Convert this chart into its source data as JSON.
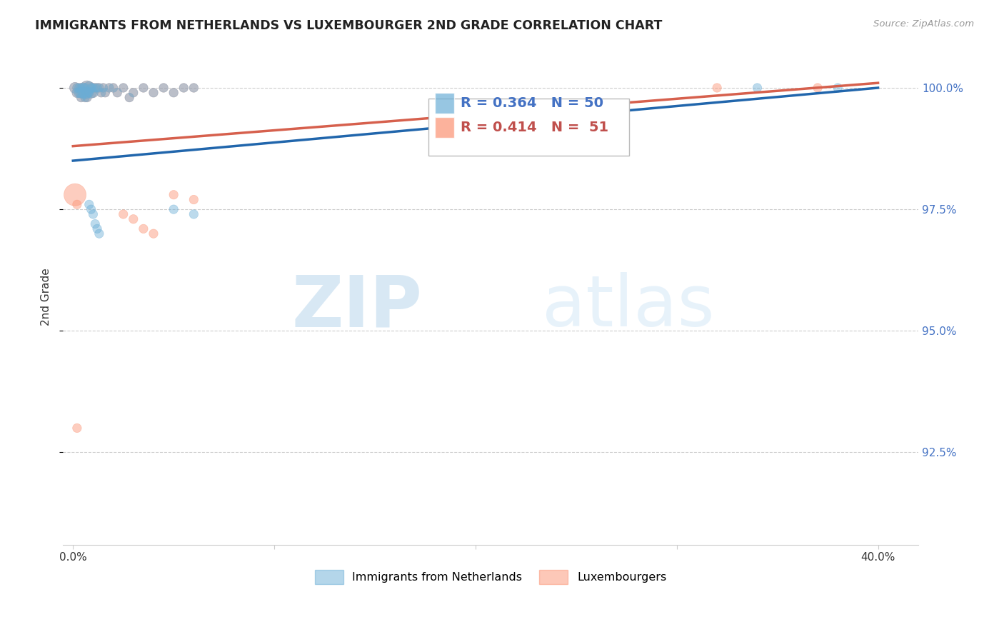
{
  "title": "IMMIGRANTS FROM NETHERLANDS VS LUXEMBOURGER 2ND GRADE CORRELATION CHART",
  "source": "Source: ZipAtlas.com",
  "ylabel": "2nd Grade",
  "yticks": [
    "100.0%",
    "97.5%",
    "95.0%",
    "92.5%"
  ],
  "ytick_vals": [
    1.0,
    0.975,
    0.95,
    0.925
  ],
  "ylim": [
    0.906,
    1.008
  ],
  "xlim": [
    -0.005,
    0.42
  ],
  "blue_R": 0.364,
  "blue_N": 50,
  "pink_R": 0.414,
  "pink_N": 51,
  "blue_color": "#6baed6",
  "pink_color": "#fc9272",
  "blue_line_color": "#2166ac",
  "pink_line_color": "#d6604d",
  "watermark_zip": "ZIP",
  "watermark_atlas": "atlas",
  "legend_label_blue": "Immigrants from Netherlands",
  "legend_label_pink": "Luxembourgers",
  "blue_x": [
    0.001,
    0.002,
    0.002,
    0.003,
    0.003,
    0.004,
    0.004,
    0.004,
    0.005,
    0.005,
    0.006,
    0.006,
    0.006,
    0.007,
    0.007,
    0.007,
    0.008,
    0.008,
    0.009,
    0.009,
    0.01,
    0.01,
    0.011,
    0.012,
    0.013,
    0.014,
    0.015,
    0.016,
    0.018,
    0.02,
    0.022,
    0.025,
    0.028,
    0.03,
    0.035,
    0.04,
    0.045,
    0.05,
    0.055,
    0.06,
    0.008,
    0.009,
    0.01,
    0.011,
    0.012,
    0.013,
    0.05,
    0.06,
    0.34,
    0.38
  ],
  "blue_y": [
    1.0,
    1.0,
    0.999,
    1.0,
    0.999,
    1.0,
    0.999,
    0.998,
    1.0,
    0.999,
    1.0,
    0.999,
    0.998,
    1.0,
    0.999,
    0.998,
    1.0,
    0.999,
    1.0,
    0.999,
    1.0,
    0.999,
    1.0,
    1.0,
    1.0,
    0.999,
    1.0,
    0.999,
    1.0,
    1.0,
    0.999,
    1.0,
    0.998,
    0.999,
    1.0,
    0.999,
    1.0,
    0.999,
    1.0,
    1.0,
    0.976,
    0.975,
    0.974,
    0.972,
    0.971,
    0.97,
    0.975,
    0.974,
    1.0,
    1.0
  ],
  "blue_sizes_pt": [
    120,
    80,
    100,
    80,
    100,
    80,
    120,
    80,
    100,
    120,
    80,
    150,
    80,
    200,
    120,
    80,
    150,
    80,
    80,
    120,
    80,
    100,
    80,
    80,
    80,
    80,
    80,
    80,
    80,
    80,
    80,
    80,
    80,
    80,
    80,
    80,
    80,
    80,
    80,
    80,
    80,
    80,
    80,
    80,
    80,
    80,
    80,
    80,
    80,
    80
  ],
  "pink_x": [
    0.001,
    0.002,
    0.002,
    0.003,
    0.003,
    0.004,
    0.004,
    0.004,
    0.005,
    0.005,
    0.006,
    0.006,
    0.006,
    0.007,
    0.007,
    0.007,
    0.008,
    0.008,
    0.009,
    0.009,
    0.01,
    0.01,
    0.011,
    0.012,
    0.013,
    0.014,
    0.015,
    0.016,
    0.018,
    0.02,
    0.022,
    0.025,
    0.028,
    0.03,
    0.035,
    0.04,
    0.045,
    0.05,
    0.055,
    0.06,
    0.001,
    0.002,
    0.025,
    0.03,
    0.035,
    0.04,
    0.05,
    0.06,
    0.32,
    0.37,
    0.002
  ],
  "pink_y": [
    1.0,
    1.0,
    0.999,
    1.0,
    0.999,
    1.0,
    0.999,
    0.998,
    1.0,
    0.999,
    1.0,
    0.999,
    0.998,
    1.0,
    0.999,
    0.998,
    1.0,
    0.999,
    1.0,
    0.999,
    1.0,
    0.999,
    1.0,
    1.0,
    1.0,
    0.999,
    1.0,
    0.999,
    1.0,
    1.0,
    0.999,
    1.0,
    0.998,
    0.999,
    1.0,
    0.999,
    1.0,
    0.999,
    1.0,
    1.0,
    0.978,
    0.976,
    0.974,
    0.973,
    0.971,
    0.97,
    0.978,
    0.977,
    1.0,
    1.0,
    0.93
  ],
  "pink_sizes_pt": [
    120,
    80,
    100,
    80,
    100,
    80,
    120,
    80,
    100,
    120,
    80,
    150,
    80,
    200,
    120,
    80,
    150,
    80,
    80,
    120,
    80,
    100,
    80,
    80,
    80,
    80,
    80,
    80,
    80,
    80,
    80,
    80,
    80,
    80,
    80,
    80,
    80,
    80,
    80,
    80,
    500,
    80,
    80,
    80,
    80,
    80,
    80,
    80,
    80,
    80,
    80
  ],
  "trendline_blue_x0": 0.0,
  "trendline_blue_y0": 0.985,
  "trendline_blue_x1": 0.4,
  "trendline_blue_y1": 1.0,
  "trendline_pink_x0": 0.0,
  "trendline_pink_y0": 0.988,
  "trendline_pink_x1": 0.4,
  "trendline_pink_y1": 1.001
}
